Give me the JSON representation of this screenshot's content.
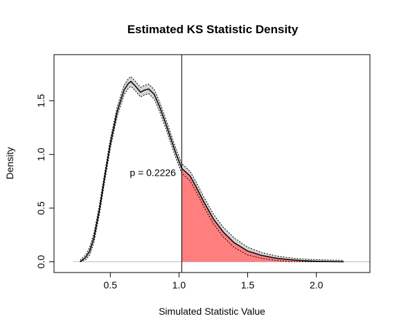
{
  "chart_data": {
    "type": "area",
    "title": "Estimated KS Statistic Density",
    "xlabel": "Simulated Statistic Value",
    "ylabel": "Density",
    "xlim": [
      0.09,
      2.39
    ],
    "ylim": [
      -0.1,
      1.93
    ],
    "x_ticks": [
      "0.5",
      "1.0",
      "1.5",
      "2.0"
    ],
    "y_ticks": [
      "0.0",
      "0.5",
      "1.0",
      "1.5"
    ],
    "observed_statistic": 1.02,
    "annotation": {
      "text": "p = 0.2226",
      "x": 0.81,
      "y": 0.83
    },
    "band_offset": 0.045,
    "density": {
      "x": [
        0.28,
        0.32,
        0.35,
        0.38,
        0.42,
        0.46,
        0.5,
        0.55,
        0.6,
        0.63,
        0.65,
        0.68,
        0.72,
        0.75,
        0.78,
        0.82,
        0.86,
        0.9,
        0.94,
        0.98,
        1.02,
        1.08,
        1.12,
        1.18,
        1.25,
        1.32,
        1.4,
        1.5,
        1.6,
        1.7,
        1.8,
        1.9,
        2.0,
        2.1,
        2.2
      ],
      "y": [
        0.0,
        0.04,
        0.1,
        0.22,
        0.48,
        0.8,
        1.1,
        1.4,
        1.6,
        1.66,
        1.68,
        1.64,
        1.58,
        1.6,
        1.61,
        1.56,
        1.44,
        1.3,
        1.15,
        1.0,
        0.87,
        0.8,
        0.71,
        0.56,
        0.4,
        0.28,
        0.18,
        0.1,
        0.06,
        0.035,
        0.02,
        0.01,
        0.005,
        0.002,
        0.0
      ]
    },
    "colors": {
      "tail_fill": "#ff7f7f",
      "band_fill": "#d3d3d3",
      "baseline": "#bebebe",
      "line": "#000000"
    },
    "grid": false
  }
}
